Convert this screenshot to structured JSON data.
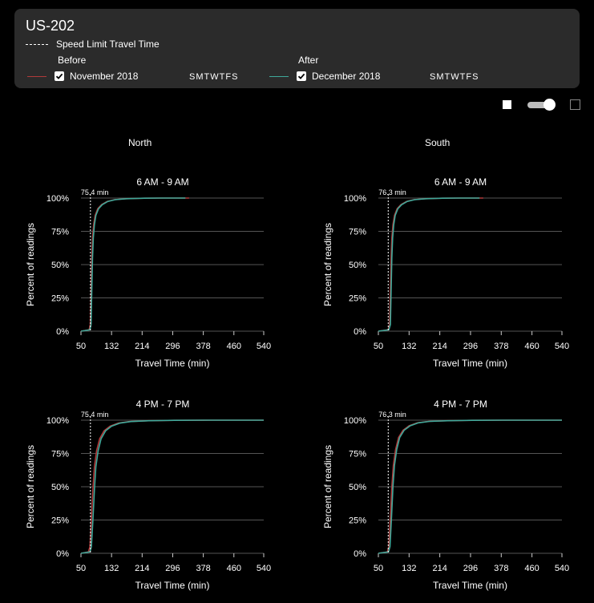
{
  "header": {
    "title": "US-202",
    "speed_limit_label": "Speed Limit Travel Time",
    "before": {
      "heading": "Before",
      "period": "November 2018",
      "days": [
        "S",
        "M",
        "T",
        "W",
        "T",
        "F",
        "S"
      ]
    },
    "after": {
      "heading": "After",
      "period": "December 2018",
      "days": [
        "S",
        "M",
        "T",
        "W",
        "T",
        "F",
        "S"
      ]
    }
  },
  "colors": {
    "before": "#b03a3a",
    "after": "#3fa89a",
    "grid": "#555555",
    "speed_line": "#ffffff",
    "card": "#2b2b2b"
  },
  "directions": {
    "north": "North",
    "south": "South"
  },
  "chart_data": [
    {
      "type": "line",
      "direction": "North",
      "title": "6 AM - 9 AM",
      "xlabel": "Travel Time (min)",
      "ylabel": "Percent of readings",
      "xlim": [
        50,
        540
      ],
      "xticks": [
        50,
        132,
        214,
        296,
        378,
        460,
        540
      ],
      "ylim": [
        0,
        100
      ],
      "yticks": [
        "0%",
        "25%",
        "50%",
        "75%",
        "100%"
      ],
      "speed_limit": 75.4,
      "speed_limit_label": "75.4 min",
      "series": [
        {
          "name": "November 2018",
          "x": [
            50,
            72,
            75,
            77,
            79,
            81,
            84,
            88,
            95,
            105,
            120,
            140,
            170,
            220,
            270,
            340
          ],
          "y": [
            0,
            1,
            5,
            30,
            55,
            70,
            80,
            87,
            92,
            95,
            97.5,
            98.8,
            99.5,
            99.9,
            100,
            100
          ]
        },
        {
          "name": "December 2018",
          "x": [
            50,
            74,
            77,
            79,
            81,
            83,
            86,
            90,
            97,
            107,
            122,
            142,
            172,
            220,
            260,
            330
          ],
          "y": [
            0,
            1,
            5,
            30,
            55,
            70,
            80,
            87,
            92,
            95,
            97.5,
            98.8,
            99.5,
            99.9,
            100,
            100
          ]
        }
      ]
    },
    {
      "type": "line",
      "direction": "South",
      "title": "6 AM - 9 AM",
      "xlabel": "Travel Time (min)",
      "ylabel": "Percent of readings",
      "xlim": [
        50,
        540
      ],
      "xticks": [
        50,
        132,
        214,
        296,
        378,
        460,
        540
      ],
      "ylim": [
        0,
        100
      ],
      "yticks": [
        "0%",
        "25%",
        "50%",
        "75%",
        "100%"
      ],
      "speed_limit": 76.3,
      "speed_limit_label": "76.3 min",
      "series": [
        {
          "name": "November 2018",
          "x": [
            50,
            76,
            80,
            82,
            84,
            86,
            89,
            93,
            100,
            110,
            125,
            145,
            175,
            220,
            270,
            330
          ],
          "y": [
            0,
            1,
            5,
            30,
            55,
            70,
            80,
            87,
            92,
            95,
            97.5,
            98.8,
            99.5,
            99.9,
            100,
            100
          ]
        },
        {
          "name": "December 2018",
          "x": [
            50,
            78,
            82,
            84,
            86,
            88,
            91,
            95,
            102,
            112,
            127,
            147,
            177,
            222,
            262,
            320
          ],
          "y": [
            0,
            1,
            5,
            30,
            55,
            70,
            80,
            87,
            92,
            95,
            97.5,
            98.8,
            99.5,
            99.9,
            100,
            100
          ]
        }
      ]
    },
    {
      "type": "line",
      "direction": "North",
      "title": "4 PM - 7 PM",
      "xlabel": "Travel Time (min)",
      "ylabel": "Percent of readings",
      "xlim": [
        50,
        540
      ],
      "xticks": [
        50,
        132,
        214,
        296,
        378,
        460,
        540
      ],
      "ylim": [
        0,
        100
      ],
      "yticks": [
        "0%",
        "25%",
        "50%",
        "75%",
        "100%"
      ],
      "speed_limit": 75.4,
      "speed_limit_label": "75.4 min",
      "series": [
        {
          "name": "November 2018",
          "x": [
            50,
            70,
            74,
            78,
            82,
            86,
            92,
            100,
            112,
            128,
            150,
            180,
            230,
            300,
            400,
            540
          ],
          "y": [
            0,
            1,
            5,
            25,
            48,
            65,
            77,
            86,
            92,
            95.5,
            97.8,
            99,
            99.6,
            99.9,
            100,
            100
          ]
        },
        {
          "name": "December 2018",
          "x": [
            50,
            74,
            78,
            82,
            86,
            90,
            96,
            104,
            116,
            132,
            154,
            184,
            232,
            300,
            380,
            540
          ],
          "y": [
            0,
            1,
            5,
            25,
            48,
            65,
            77,
            86,
            92,
            95.5,
            97.8,
            99,
            99.6,
            99.9,
            100,
            100
          ]
        }
      ]
    },
    {
      "type": "line",
      "direction": "South",
      "title": "4 PM - 7 PM",
      "xlabel": "Travel Time (min)",
      "ylabel": "Percent of readings",
      "xlim": [
        50,
        540
      ],
      "xticks": [
        50,
        132,
        214,
        296,
        378,
        460,
        540
      ],
      "ylim": [
        0,
        100
      ],
      "yticks": [
        "0%",
        "25%",
        "50%",
        "75%",
        "100%"
      ],
      "speed_limit": 76.3,
      "speed_limit_label": "76.3 min",
      "series": [
        {
          "name": "November 2018",
          "x": [
            50,
            74,
            78,
            82,
            86,
            90,
            96,
            104,
            116,
            132,
            154,
            184,
            232,
            300,
            400,
            540
          ],
          "y": [
            0,
            1,
            5,
            27,
            50,
            66,
            78,
            87,
            92.5,
            95.8,
            98,
            99.1,
            99.6,
            99.9,
            100,
            100
          ]
        },
        {
          "name": "December 2018",
          "x": [
            50,
            77,
            81,
            85,
            89,
            93,
            99,
            107,
            119,
            135,
            157,
            187,
            235,
            300,
            380,
            540
          ],
          "y": [
            0,
            1,
            5,
            27,
            50,
            66,
            78,
            87,
            92.5,
            95.8,
            98,
            99.1,
            99.6,
            99.9,
            100,
            100
          ]
        }
      ]
    }
  ]
}
